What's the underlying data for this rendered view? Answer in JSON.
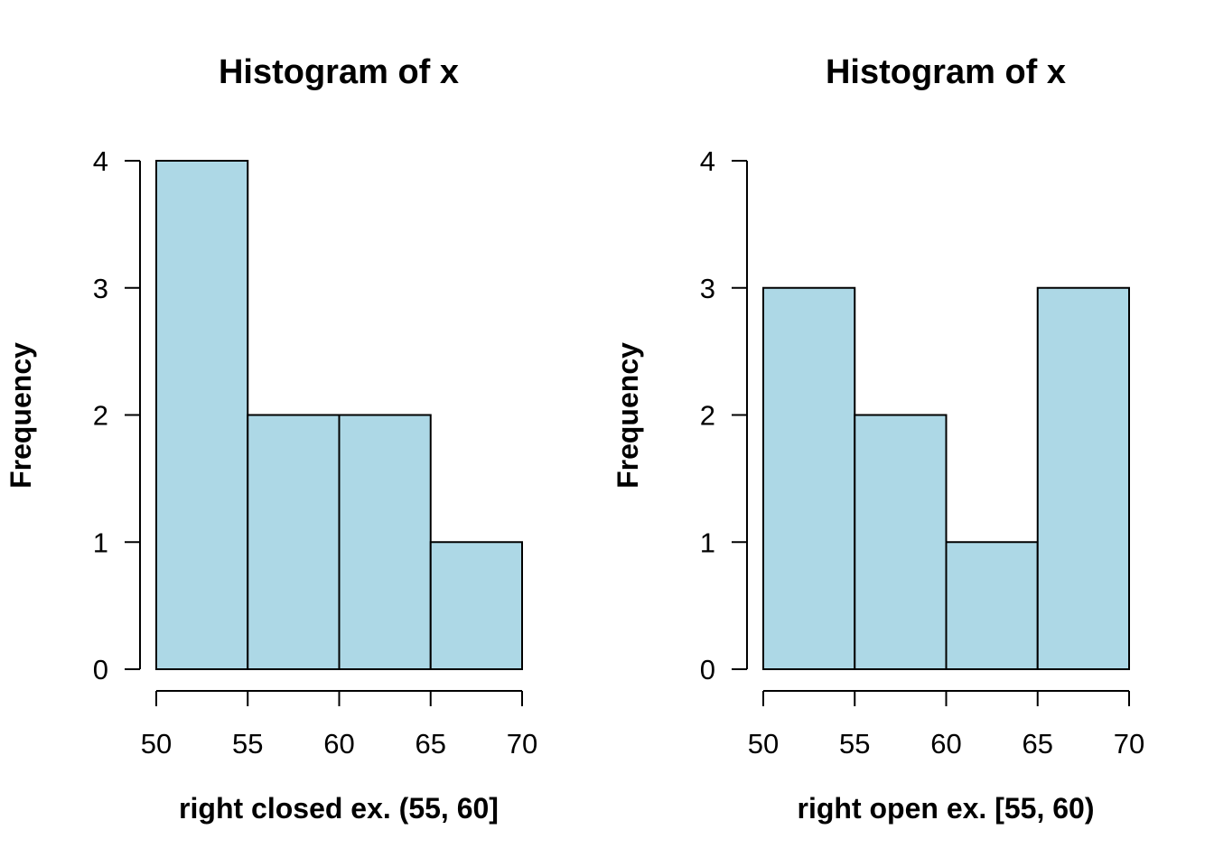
{
  "page": {
    "background": "#ffffff",
    "kind": "R base graphics figure, two histogram panels side by side"
  },
  "colors": {
    "bar_fill": "#ADD8E6",
    "bar_stroke": "#000000",
    "axis": "#000000",
    "text": "#000000"
  },
  "chart_data": [
    {
      "type": "bar",
      "title": "Histogram of x",
      "xlabel": "right closed ex. (55, 60]",
      "ylabel": "Frequency",
      "bin_edges": [
        50,
        55,
        60,
        65,
        70
      ],
      "values": [
        4,
        2,
        2,
        1
      ],
      "x_ticks": [
        "50",
        "55",
        "60",
        "65",
        "70"
      ],
      "y_ticks": [
        "0",
        "1",
        "2",
        "3",
        "4"
      ],
      "xlim": [
        50,
        70
      ],
      "ylim": [
        0,
        4
      ],
      "grid": false,
      "legend": "none"
    },
    {
      "type": "bar",
      "title": "Histogram of x",
      "xlabel": "right open ex. [55, 60)",
      "ylabel": "Frequency",
      "bin_edges": [
        50,
        55,
        60,
        65,
        70
      ],
      "values": [
        3,
        2,
        1,
        3
      ],
      "x_ticks": [
        "50",
        "55",
        "60",
        "65",
        "70"
      ],
      "y_ticks": [
        "0",
        "1",
        "2",
        "3",
        "4"
      ],
      "xlim": [
        50,
        70
      ],
      "ylim": [
        0,
        4
      ],
      "grid": false,
      "legend": "none"
    }
  ]
}
